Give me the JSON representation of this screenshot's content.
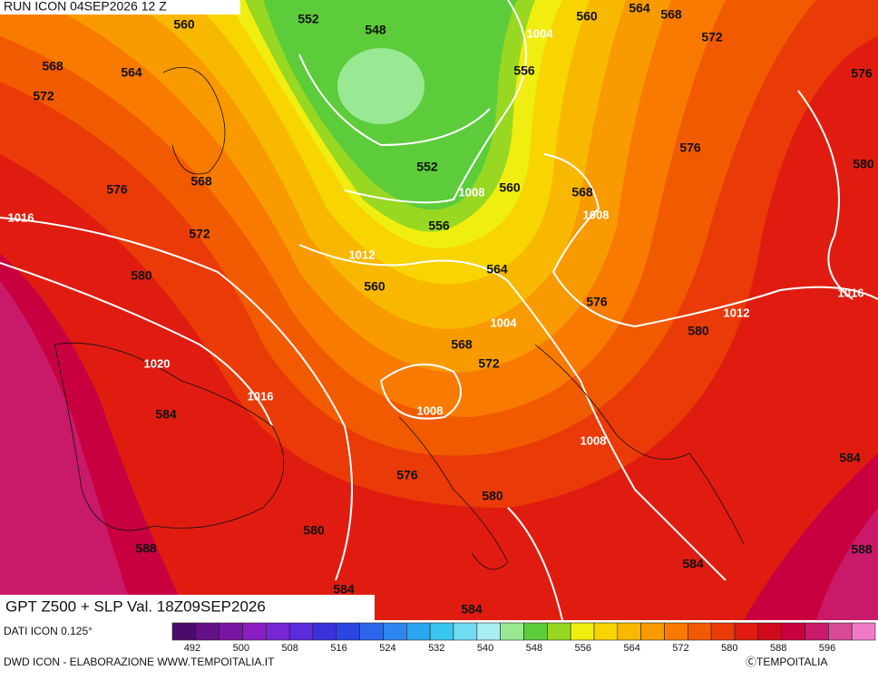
{
  "header": {
    "run": "RUN ICON 04SEP2026 12 Z"
  },
  "product": "GPT Z500 + SLP Val. 18Z09SEP2026",
  "source": "DATI ICON 0.125°",
  "footer": {
    "credit": "DWD ICON - ELABORAZIONE WWW.TEMPOITALIA.IT",
    "copyright": "ⒸTEMPOITALIA"
  },
  "legend": {
    "colors": [
      "#4a0c6a",
      "#650f88",
      "#7a14a4",
      "#8a1cc2",
      "#7826d6",
      "#5a2cdc",
      "#3a30dc",
      "#2a46e2",
      "#2e66ea",
      "#2e86f0",
      "#2aa6f0",
      "#38c6f0",
      "#70dcf2",
      "#a8eef2",
      "#98e894",
      "#5ccc3a",
      "#98d822",
      "#f0ee10",
      "#f8d400",
      "#f8b800",
      "#f89a00",
      "#f87a00",
      "#f25a00",
      "#ea3a08",
      "#e01c10",
      "#d00a1c",
      "#c80040",
      "#c81a68",
      "#d84a98",
      "#f07ac8"
    ],
    "labels": [
      "492",
      "500",
      "508",
      "516",
      "524",
      "532",
      "540",
      "548",
      "556",
      "564",
      "572",
      "580",
      "588",
      "596"
    ]
  },
  "map": {
    "z500_labels": [
      "552",
      "548",
      "560",
      "560",
      "564",
      "568",
      "572",
      "576",
      "568",
      "564",
      "572",
      "556",
      "552",
      "568",
      "576",
      "560",
      "568",
      "556",
      "572",
      "576",
      "580",
      "564",
      "580",
      "560",
      "576",
      "568",
      "572",
      "580",
      "584",
      "576",
      "580",
      "580",
      "588",
      "584",
      "588",
      "584",
      "584",
      "584"
    ],
    "slp_labels": [
      "1004",
      "1008",
      "1008",
      "1016",
      "1012",
      "1016",
      "1012",
      "1004",
      "1020",
      "1016",
      "1008",
      "1008"
    ]
  }
}
